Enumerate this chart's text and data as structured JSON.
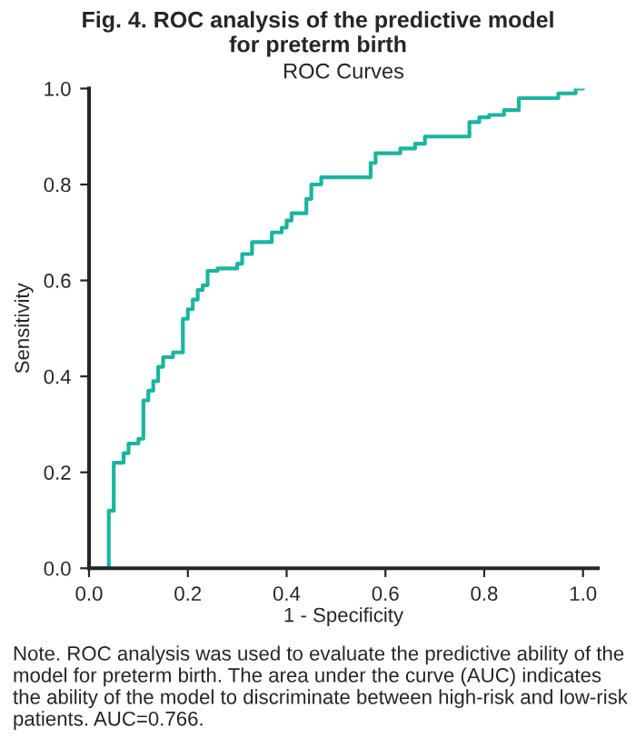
{
  "chart_data": {
    "type": "line",
    "title": "Fig. 4. ROC analysis of the predictive model\nfor preterm birth",
    "subtitle": "ROC Curves",
    "xlabel": "1 - Specificity",
    "ylabel": "Sensitivity",
    "annotations": [
      "Note. ROC analysis was used to evaluate the predictive ability of the model for preterm birth. The area under the curve (AUC) indicates the ability of the model to discriminate between high-risk and low-risk patients. AUC=0.766."
    ],
    "series": [
      {
        "color": "#1ab5a0",
        "x": [
          0,
          0.04,
          0.04,
          0.05,
          0.05,
          0.07,
          0.07,
          0.08,
          0.08,
          0.1,
          0.1,
          0.11,
          0.11,
          0.12,
          0.12,
          0.13,
          0.13,
          0.14,
          0.14,
          0.15,
          0.15,
          0.17,
          0.17,
          0.19,
          0.19,
          0.2,
          0.2,
          0.21,
          0.21,
          0.22,
          0.22,
          0.23,
          0.23,
          0.24,
          0.24,
          0.26,
          0.26,
          0.3,
          0.3,
          0.31,
          0.31,
          0.33,
          0.33,
          0.37,
          0.37,
          0.39,
          0.39,
          0.4,
          0.4,
          0.41,
          0.41,
          0.44,
          0.44,
          0.45,
          0.45,
          0.47,
          0.47,
          0.57,
          0.57,
          0.58,
          0.58,
          0.63,
          0.63,
          0.66,
          0.66,
          0.68,
          0.68,
          0.77,
          0.77,
          0.79,
          0.79,
          0.81,
          0.81,
          0.84,
          0.84,
          0.87,
          0.87,
          0.95,
          0.95,
          0.985,
          0.985,
          1.0
        ],
        "values": [
          0,
          0,
          0.12,
          0.12,
          0.22,
          0.22,
          0.24,
          0.24,
          0.26,
          0.26,
          0.27,
          0.27,
          0.35,
          0.35,
          0.37,
          0.37,
          0.39,
          0.39,
          0.42,
          0.42,
          0.44,
          0.44,
          0.45,
          0.45,
          0.52,
          0.52,
          0.54,
          0.54,
          0.56,
          0.56,
          0.58,
          0.58,
          0.59,
          0.59,
          0.62,
          0.62,
          0.625,
          0.625,
          0.635,
          0.635,
          0.655,
          0.655,
          0.68,
          0.68,
          0.7,
          0.7,
          0.71,
          0.71,
          0.725,
          0.725,
          0.74,
          0.74,
          0.77,
          0.77,
          0.8,
          0.8,
          0.815,
          0.815,
          0.845,
          0.845,
          0.865,
          0.865,
          0.875,
          0.875,
          0.885,
          0.885,
          0.9,
          0.9,
          0.93,
          0.93,
          0.94,
          0.94,
          0.945,
          0.945,
          0.955,
          0.955,
          0.98,
          0.98,
          0.99,
          0.99,
          1.0,
          1.0
        ]
      }
    ],
    "xlim": [
      0,
      1.03
    ],
    "ylim": [
      0,
      1.0
    ],
    "xticks": [
      {
        "value": 0,
        "label": "0.0"
      },
      {
        "value": 0.2,
        "label": "0.2"
      },
      {
        "value": 0.4,
        "label": "0.4"
      },
      {
        "value": 0.6,
        "label": "0.6"
      },
      {
        "value": 0.8,
        "label": "0.8"
      },
      {
        "value": 1.0,
        "label": "1.0"
      }
    ],
    "yticks": [
      {
        "value": 0,
        "label": "0.0"
      },
      {
        "value": 0.2,
        "label": "0.2"
      },
      {
        "value": 0.4,
        "label": "0.4"
      },
      {
        "value": 0.6,
        "label": "0.6"
      },
      {
        "value": 0.8,
        "label": "0.8"
      },
      {
        "value": 1.0,
        "label": "1.0"
      }
    ],
    "grid": false,
    "legend": false,
    "marker": "none",
    "line_style": "solid"
  }
}
